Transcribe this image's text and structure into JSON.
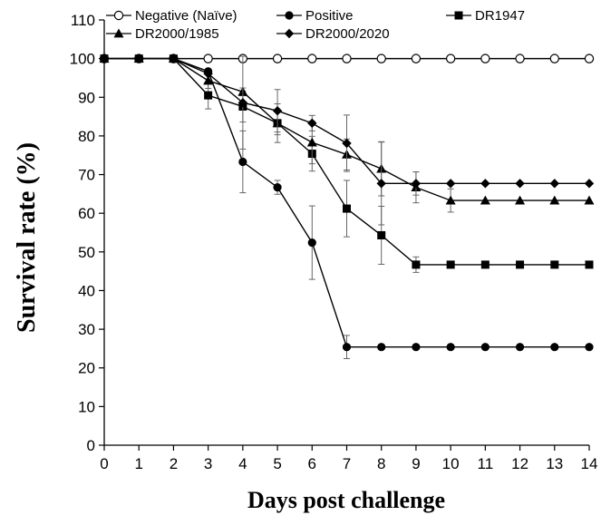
{
  "chart_data": {
    "type": "line",
    "title": "",
    "xlabel": "Days post challenge",
    "ylabel": "Survival rate (%)",
    "xlim": [
      0,
      14
    ],
    "ylim": [
      0,
      110
    ],
    "x_ticks": [
      "0",
      "1",
      "2",
      "3",
      "4",
      "5",
      "6",
      "7",
      "8",
      "9",
      "10",
      "11",
      "12",
      "13",
      "14"
    ],
    "y_ticks": [
      "0",
      "10",
      "20",
      "30",
      "40",
      "50",
      "60",
      "70",
      "80",
      "90",
      "100",
      "110"
    ],
    "grid": false,
    "legend_position": "top",
    "series": [
      {
        "name": "Negative (Naïve)",
        "marker": "open-circle",
        "x": [
          0,
          1,
          2,
          3,
          4,
          5,
          6,
          7,
          8,
          9,
          10,
          11,
          12,
          13,
          14
        ],
        "values": [
          100,
          100,
          100,
          100,
          100,
          100,
          100,
          100,
          100,
          100,
          100,
          100,
          100,
          100,
          100
        ],
        "error": [
          0,
          0,
          0,
          0,
          0,
          0,
          0,
          0,
          0,
          0,
          0,
          0,
          0,
          0,
          0
        ]
      },
      {
        "name": "Positive",
        "marker": "filled-circle",
        "x": [
          0,
          1,
          2,
          3,
          4,
          5,
          6,
          7,
          8,
          9,
          10,
          11,
          12,
          13,
          14
        ],
        "values": [
          100,
          100,
          100,
          96.7,
          73.3,
          66.7,
          52.4,
          25.4,
          25.4,
          25.4,
          25.4,
          25.4,
          25.4,
          25.4,
          25.4
        ],
        "error": [
          0,
          0,
          0,
          0,
          8,
          1.8,
          9.5,
          3,
          0,
          0,
          0,
          0,
          0,
          0,
          0
        ]
      },
      {
        "name": "DR1947",
        "marker": "square",
        "x": [
          0,
          1,
          2,
          3,
          4,
          5,
          6,
          7,
          8,
          9,
          10,
          11,
          12,
          13,
          14
        ],
        "values": [
          100,
          100,
          100,
          90.5,
          87.6,
          83.3,
          75.4,
          61.2,
          54.3,
          46.7,
          46.7,
          46.7,
          46.7,
          46.7,
          46.7
        ],
        "error": [
          0,
          0,
          0,
          3.5,
          4,
          3,
          4.5,
          7.3,
          7.5,
          2,
          0,
          0,
          0,
          0,
          0
        ]
      },
      {
        "name": "DR2000/1985",
        "marker": "triangle",
        "x": [
          0,
          1,
          2,
          3,
          4,
          5,
          6,
          7,
          8,
          9,
          10,
          11,
          12,
          13,
          14
        ],
        "values": [
          100,
          100,
          100,
          94.3,
          91.4,
          83.3,
          78.3,
          75.2,
          71.5,
          66.7,
          63.3,
          63.3,
          63.3,
          63.3,
          63.3
        ],
        "error": [
          0,
          0,
          0,
          2,
          1,
          5,
          5.5,
          4,
          7,
          4,
          3,
          0,
          0,
          0,
          0
        ]
      },
      {
        "name": "DR2000/2020",
        "marker": "diamond",
        "x": [
          0,
          1,
          2,
          3,
          4,
          5,
          6,
          7,
          8,
          9,
          10,
          11,
          12,
          13,
          14
        ],
        "values": [
          100,
          100,
          100,
          96.1,
          88.6,
          86.5,
          83.3,
          78.1,
          67.7,
          67.7,
          67.7,
          67.7,
          67.7,
          67.7,
          67.7
        ],
        "error": [
          0,
          0,
          0,
          0,
          12,
          5.5,
          2,
          7.3,
          10.7,
          3,
          0,
          0,
          0,
          0,
          0
        ]
      }
    ]
  }
}
